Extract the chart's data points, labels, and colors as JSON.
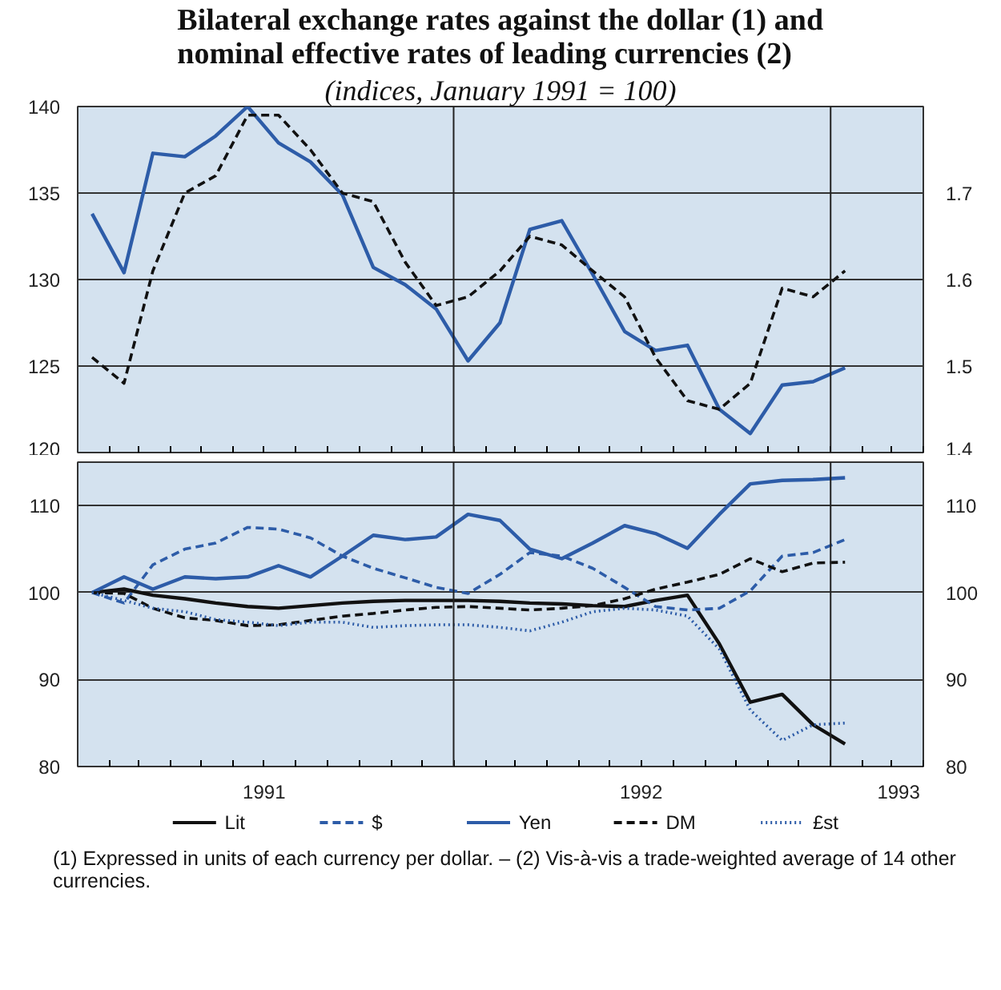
{
  "chart_data": [
    {
      "type": "line",
      "title": "Bilateral exchange rates against the dollar (1) and nominal effective rates of leading currencies (2)",
      "subtitle": "(indices, January 1991 = 100)",
      "x": [
        "1991-01-15",
        "1991-02-15",
        "1991-03-15",
        "1991-04-15",
        "1991-05-15",
        "1991-06-15",
        "1991-07-15",
        "1991-08-15",
        "1991-09-15",
        "1991-10-15",
        "1991-11-15",
        "1991-12-15",
        "1992-01-15",
        "1992-02-15",
        "1992-03-15",
        "1992-04-15",
        "1992-05-15",
        "1992-06-15",
        "1992-07-15",
        "1992-08-15",
        "1992-09-15",
        "1992-10-15",
        "1992-11-15",
        "1992-12-15",
        "1993-01-15"
      ],
      "xlim": [
        "1991-01-01",
        "1993-04-01"
      ],
      "ylim": [
        120,
        140
      ],
      "yticks": [
        120,
        125,
        130,
        135,
        140
      ],
      "y2lim": [
        1.4,
        1.8
      ],
      "y2ticks": [
        1.4,
        1.5,
        1.6,
        1.7
      ],
      "tick_labels": "y",
      "grid": "y",
      "ref_lines": [
        {
          "axis": "x",
          "value": "1992-01-01",
          "color": "#222222"
        },
        {
          "axis": "x",
          "value": "1993-01-01",
          "color": "#222222"
        }
      ],
      "series": [
        {
          "color": "#2d5ca8",
          "line_style": "solid",
          "values": [
            133.8,
            130.4,
            137.3,
            137.1,
            138.3,
            140.0,
            137.9,
            136.8,
            134.9,
            130.7,
            129.7,
            128.3,
            125.3,
            127.5,
            132.9,
            133.4,
            130.3,
            127.0,
            125.9,
            126.2,
            122.5,
            121.1,
            123.9,
            124.1,
            124.9
          ]
        },
        {
          "color": "#111111",
          "line_style": "dashed",
          "axis": "y2",
          "values": [
            1.51,
            1.48,
            1.61,
            1.7,
            1.72,
            1.79,
            1.79,
            1.75,
            1.7,
            1.69,
            1.62,
            1.57,
            1.58,
            1.61,
            1.65,
            1.64,
            1.61,
            1.58,
            1.51,
            1.46,
            1.45,
            1.48,
            1.59,
            1.58,
            1.61
          ]
        }
      ]
    },
    {
      "type": "line",
      "x": [
        "1991-01-15",
        "1991-02-15",
        "1991-03-15",
        "1991-04-15",
        "1991-05-15",
        "1991-06-15",
        "1991-07-15",
        "1991-08-15",
        "1991-09-15",
        "1991-10-15",
        "1991-11-15",
        "1991-12-15",
        "1992-01-15",
        "1992-02-15",
        "1992-03-15",
        "1992-04-15",
        "1992-05-15",
        "1992-06-15",
        "1992-07-15",
        "1992-08-15",
        "1992-09-15",
        "1992-10-15",
        "1992-11-15",
        "1992-12-15",
        "1993-01-15"
      ],
      "xlim": [
        "1991-01-01",
        "1993-04-01"
      ],
      "xticks": [
        {
          "value": "1991-07-01",
          "label": "1991"
        },
        {
          "value": "1992-07-01",
          "label": "1992"
        },
        {
          "value": "1993-03-08",
          "label": "1993"
        }
      ],
      "ylim": [
        80,
        115
      ],
      "yticks": [
        80,
        90,
        100,
        110
      ],
      "y2lim": [
        80,
        115
      ],
      "y2ticks": [
        80,
        90,
        100,
        110
      ],
      "grid": "y",
      "legend": "bottom",
      "ref_lines": [
        {
          "axis": "x",
          "value": "1992-01-01",
          "color": "#222222"
        },
        {
          "axis": "x",
          "value": "1993-01-01",
          "color": "#222222"
        }
      ],
      "annotations": [
        "(1) Expressed in units of each currency per dollar. – (2) Vis-à-vis a trade-weighted average of 14 other currencies."
      ],
      "series": [
        {
          "name": "Lit",
          "color": "#111111",
          "line_style": "solid",
          "values": [
            100.0,
            100.4,
            99.7,
            99.3,
            98.8,
            98.4,
            98.2,
            98.5,
            98.8,
            99.0,
            99.1,
            99.1,
            99.1,
            99.0,
            98.8,
            98.7,
            98.5,
            98.4,
            99.1,
            99.7,
            94.1,
            87.4,
            88.3,
            84.8,
            82.6
          ]
        },
        {
          "name": "$",
          "color": "#2d5ca8",
          "line_style": "dashed",
          "values": [
            100.0,
            98.8,
            103.2,
            105.0,
            105.7,
            107.5,
            107.3,
            106.3,
            104.2,
            102.8,
            101.7,
            100.6,
            99.9,
            102.1,
            104.6,
            104.2,
            102.8,
            100.6,
            98.4,
            98.0,
            98.2,
            100.2,
            104.2,
            104.6,
            106.1
          ]
        },
        {
          "name": "Yen",
          "color": "#2d5ca8",
          "line_style": "solid",
          "values": [
            100.0,
            101.8,
            100.4,
            101.8,
            101.6,
            101.8,
            103.1,
            101.8,
            104.2,
            106.6,
            106.1,
            106.4,
            109.0,
            108.3,
            105.0,
            103.9,
            105.7,
            107.7,
            106.8,
            105.1,
            109.0,
            112.5,
            112.9,
            113.0,
            113.2
          ]
        },
        {
          "name": "DM",
          "color": "#111111",
          "line_style": "dashed",
          "values": [
            100.0,
            99.9,
            98.2,
            97.1,
            96.8,
            96.2,
            96.3,
            96.8,
            97.3,
            97.6,
            98.0,
            98.3,
            98.4,
            98.2,
            98.0,
            98.2,
            98.5,
            99.3,
            100.4,
            101.2,
            102.1,
            103.9,
            102.4,
            103.4,
            103.5
          ]
        },
        {
          "name": "£st",
          "color": "#2d5ca8",
          "line_style": "dotted",
          "values": [
            100.0,
            99.1,
            98.2,
            97.8,
            96.9,
            96.6,
            96.2,
            96.6,
            96.6,
            96.0,
            96.2,
            96.3,
            96.3,
            96.0,
            95.6,
            96.6,
            97.8,
            98.2,
            98.0,
            97.3,
            93.5,
            86.5,
            83.0,
            84.8,
            85.0
          ]
        }
      ]
    }
  ]
}
